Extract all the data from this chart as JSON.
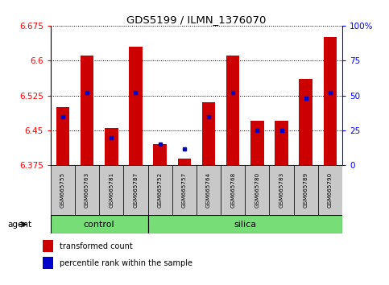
{
  "title": "GDS5199 / ILMN_1376070",
  "samples": [
    "GSM665755",
    "GSM665763",
    "GSM665781",
    "GSM665787",
    "GSM665752",
    "GSM665757",
    "GSM665764",
    "GSM665768",
    "GSM665780",
    "GSM665783",
    "GSM665789",
    "GSM665790"
  ],
  "groups": [
    "control",
    "control",
    "control",
    "control",
    "silica",
    "silica",
    "silica",
    "silica",
    "silica",
    "silica",
    "silica",
    "silica"
  ],
  "red_values": [
    6.5,
    6.61,
    6.455,
    6.63,
    6.42,
    6.39,
    6.51,
    6.61,
    6.47,
    6.47,
    6.56,
    6.65
  ],
  "blue_percentiles": [
    35,
    52,
    20,
    52,
    15,
    12,
    35,
    52,
    25,
    25,
    48,
    52
  ],
  "ymin": 6.375,
  "ymax": 6.675,
  "yticks": [
    6.375,
    6.45,
    6.525,
    6.6,
    6.675
  ],
  "right_yticks": [
    0,
    25,
    50,
    75,
    100
  ],
  "bar_color": "#cc0000",
  "blue_color": "#0000cc",
  "green_color": "#77dd77",
  "gray_color": "#c8c8c8",
  "legend_red_label": "transformed count",
  "legend_blue_label": "percentile rank within the sample",
  "bar_width": 0.55,
  "control_count": 4,
  "silica_count": 8
}
